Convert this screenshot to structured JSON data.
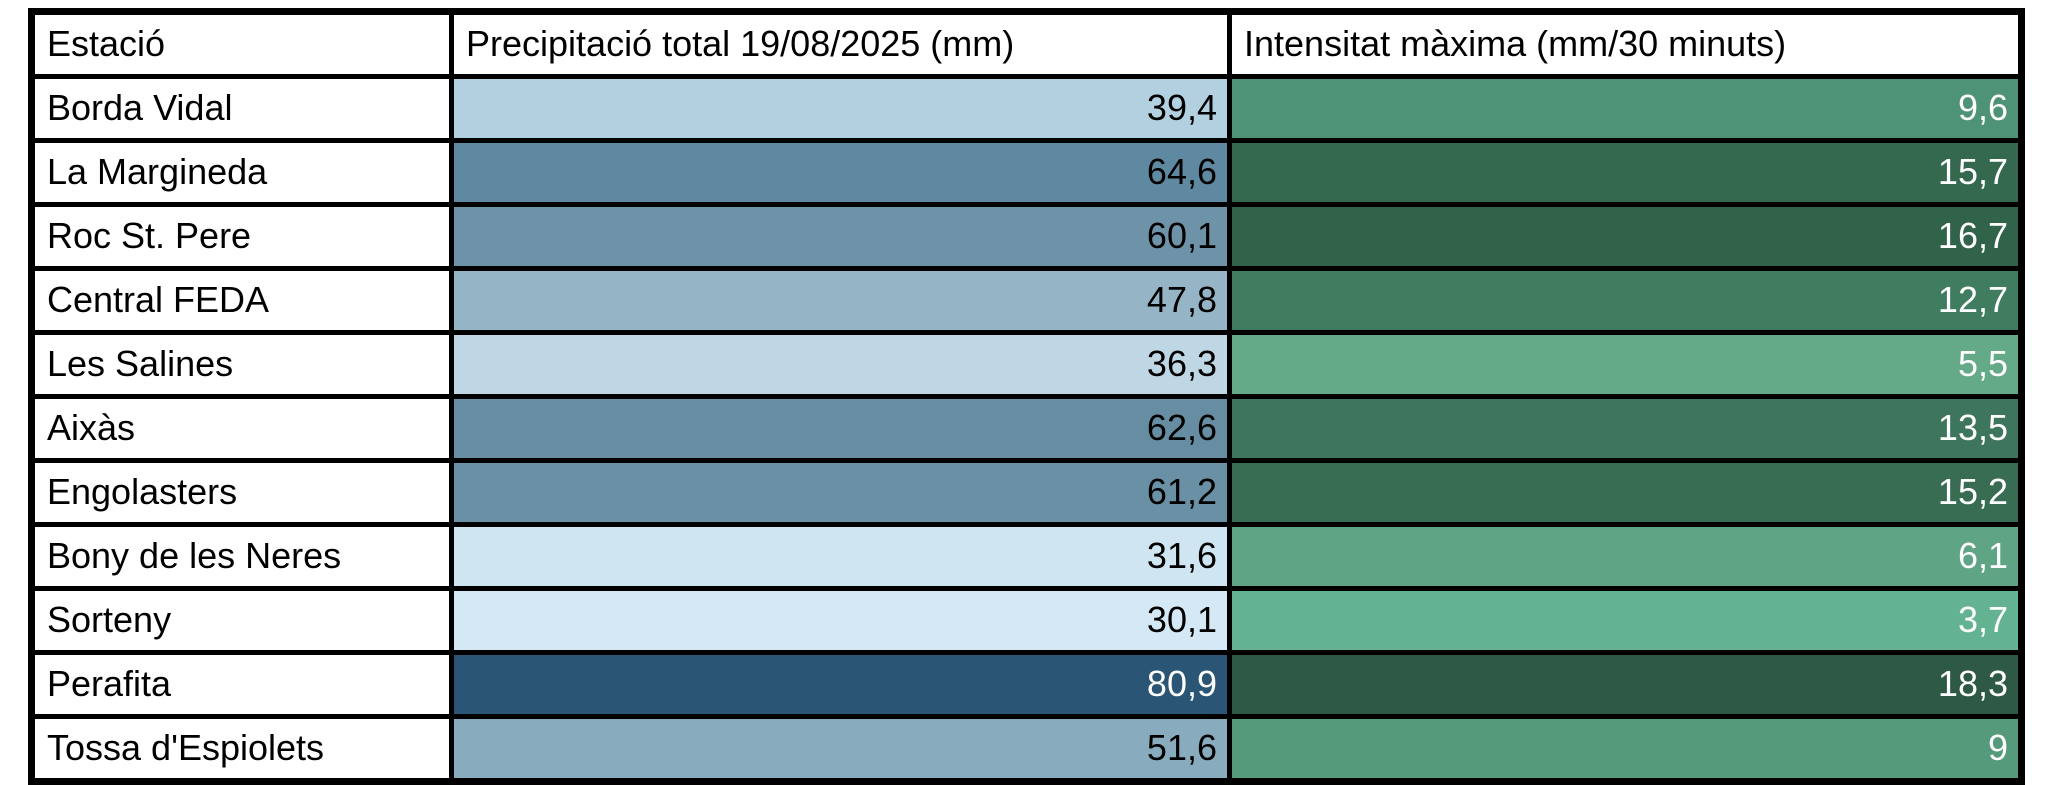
{
  "page": {
    "background": "#ffffff",
    "border_color": "#000000"
  },
  "table": {
    "columns": [
      {
        "id": "station",
        "label": "Estació"
      },
      {
        "id": "precip",
        "label": "Precipitació total 19/08/2025 (mm)"
      },
      {
        "id": "intensity",
        "label": "Intensitat màxima (mm/30 minuts)"
      }
    ],
    "header_bg": "#ffffff",
    "station_bg": "#ffffff",
    "rows": [
      {
        "station": "Borda Vidal",
        "precip": "39,4",
        "precip_bg": "#b2d0e0",
        "precip_fg": "#000000",
        "intensity": "9,6",
        "intensity_bg": "#4f9377",
        "intensity_fg": "#ffffff"
      },
      {
        "station": "La Margineda",
        "precip": "64,6",
        "precip_bg": "#5f89a0",
        "precip_fg": "#000000",
        "intensity": "15,7",
        "intensity_bg": "#35694f",
        "intensity_fg": "#ffffff"
      },
      {
        "station": "Roc St. Pere",
        "precip": "60,1",
        "precip_bg": "#6e93a8",
        "precip_fg": "#000000",
        "intensity": "16,7",
        "intensity_bg": "#30634a",
        "intensity_fg": "#ffffff"
      },
      {
        "station": "Central FEDA",
        "precip": "47,8",
        "precip_bg": "#95b5c6",
        "precip_fg": "#000000",
        "intensity": "12,7",
        "intensity_bg": "#407c60",
        "intensity_fg": "#ffffff"
      },
      {
        "station": "Les Salines",
        "precip": "36,3",
        "precip_bg": "#bfd7e5",
        "precip_fg": "#000000",
        "intensity": "5,5",
        "intensity_bg": "#64a988",
        "intensity_fg": "#ffffff"
      },
      {
        "station": "Aixàs",
        "precip": "62,6",
        "precip_bg": "#668da1",
        "precip_fg": "#000000",
        "intensity": "13,5",
        "intensity_bg": "#3e765d",
        "intensity_fg": "#ffffff"
      },
      {
        "station": "Engolasters",
        "precip": "61,2",
        "precip_bg": "#6a90a5",
        "precip_fg": "#000000",
        "intensity": "15,2",
        "intensity_bg": "#386d54",
        "intensity_fg": "#ffffff"
      },
      {
        "station": "Bony de les Neres",
        "precip": "31,6",
        "precip_bg": "#cfe5f1",
        "precip_fg": "#000000",
        "intensity": "6,1",
        "intensity_bg": "#5fa485",
        "intensity_fg": "#ffffff"
      },
      {
        "station": "Sorteny",
        "precip": "30,1",
        "precip_bg": "#d4e9f5",
        "precip_fg": "#000000",
        "intensity": "3,7",
        "intensity_bg": "#63b392",
        "intensity_fg": "#ffffff"
      },
      {
        "station": "Perafita",
        "precip": "80,9",
        "precip_bg": "#2a5574",
        "precip_fg": "#ffffff",
        "intensity": "18,3",
        "intensity_bg": "#2e5a45",
        "intensity_fg": "#ffffff"
      },
      {
        "station": "Tossa d'Espiolets",
        "precip": "51,6",
        "precip_bg": "#89abbe",
        "precip_fg": "#000000",
        "intensity": "9",
        "intensity_bg": "#559a7b",
        "intensity_fg": "#ffffff"
      }
    ]
  },
  "chart_data": {
    "type": "table",
    "title": "",
    "columns": [
      "Estació",
      "Precipitació total 19/08/2025 (mm)",
      "Intensitat màxima (mm/30 minuts)"
    ],
    "rows": [
      [
        "Borda Vidal",
        39.4,
        9.6
      ],
      [
        "La Margineda",
        64.6,
        15.7
      ],
      [
        "Roc St. Pere",
        60.1,
        16.7
      ],
      [
        "Central FEDA",
        47.8,
        12.7
      ],
      [
        "Les Salines",
        36.3,
        5.5
      ],
      [
        "Aixàs",
        62.6,
        13.5
      ],
      [
        "Engolasters",
        61.2,
        15.2
      ],
      [
        "Bony de les Neres",
        31.6,
        6.1
      ],
      [
        "Sorteny",
        30.1,
        3.7
      ],
      [
        "Perafita",
        80.9,
        18.3
      ],
      [
        "Tossa d'Espiolets",
        51.6,
        9
      ]
    ],
    "decimal_separator": ",",
    "conditional_formatting": {
      "precipitation_color_scale": {
        "min_value": 30.1,
        "min_color": "#d4e9f5",
        "max_value": 80.9,
        "max_color": "#2a5574"
      },
      "intensity_color_scale": {
        "min_value": 3.7,
        "min_color": "#63b392",
        "max_value": 18.3,
        "max_color": "#2e5a45"
      }
    }
  }
}
